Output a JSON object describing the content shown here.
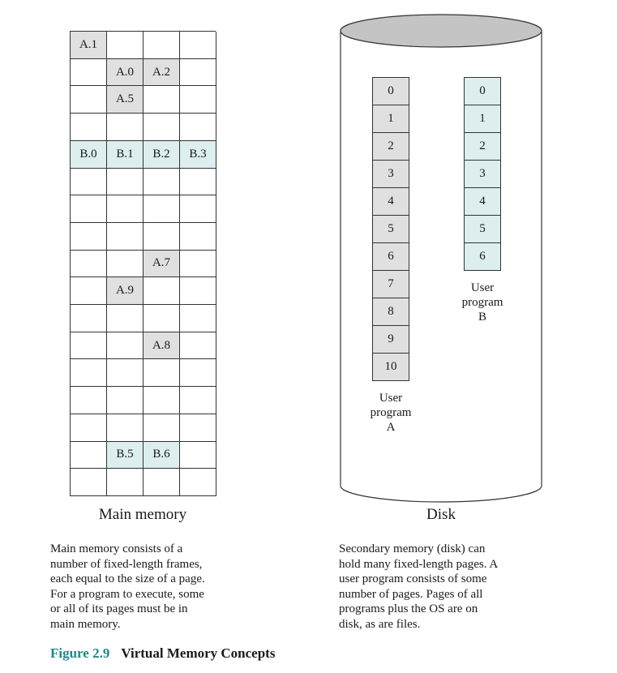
{
  "main_memory": {
    "columns": 4,
    "rows": 17,
    "cells": [
      {
        "row": 0,
        "col": 0,
        "label": "A.1",
        "program": "A"
      },
      {
        "row": 1,
        "col": 1,
        "label": "A.0",
        "program": "A"
      },
      {
        "row": 1,
        "col": 2,
        "label": "A.2",
        "program": "A"
      },
      {
        "row": 2,
        "col": 1,
        "label": "A.5",
        "program": "A"
      },
      {
        "row": 4,
        "col": 0,
        "label": "B.0",
        "program": "B"
      },
      {
        "row": 4,
        "col": 1,
        "label": "B.1",
        "program": "B"
      },
      {
        "row": 4,
        "col": 2,
        "label": "B.2",
        "program": "B"
      },
      {
        "row": 4,
        "col": 3,
        "label": "B.3",
        "program": "B"
      },
      {
        "row": 8,
        "col": 2,
        "label": "A.7",
        "program": "A"
      },
      {
        "row": 9,
        "col": 1,
        "label": "A.9",
        "program": "A"
      },
      {
        "row": 11,
        "col": 2,
        "label": "A.8",
        "program": "A"
      },
      {
        "row": 15,
        "col": 1,
        "label": "B.5",
        "program": "B"
      },
      {
        "row": 15,
        "col": 2,
        "label": "B.6",
        "program": "B"
      }
    ],
    "caption": "Main memory",
    "description": "Main memory consists of a\nnumber of fixed-length frames,\neach equal to the size of a page.\nFor a program to execute, some\nor all of its pages must be in\nmain memory."
  },
  "disk": {
    "caption": "Disk",
    "description": "Secondary memory (disk) can\nhold many fixed-length pages. A\nuser program consists of some\nnumber of pages. Pages of all\nprograms plus the OS are on\ndisk, as are files.",
    "program_a": {
      "pages": [
        "0",
        "1",
        "2",
        "3",
        "4",
        "5",
        "6",
        "7",
        "8",
        "9",
        "10"
      ],
      "label": "User\nprogram\nA"
    },
    "program_b": {
      "pages": [
        "0",
        "1",
        "2",
        "3",
        "4",
        "5",
        "6"
      ],
      "label": "User\nprogram\nB"
    }
  },
  "figure": {
    "number": "Figure 2.9",
    "title": "Virtual Memory Concepts"
  },
  "colors": {
    "program_a_fill": "#e0e0e0",
    "program_b_fill": "#dceeee",
    "disk_top": "#c4c4c4",
    "figure_number": "#1a8a8a"
  }
}
